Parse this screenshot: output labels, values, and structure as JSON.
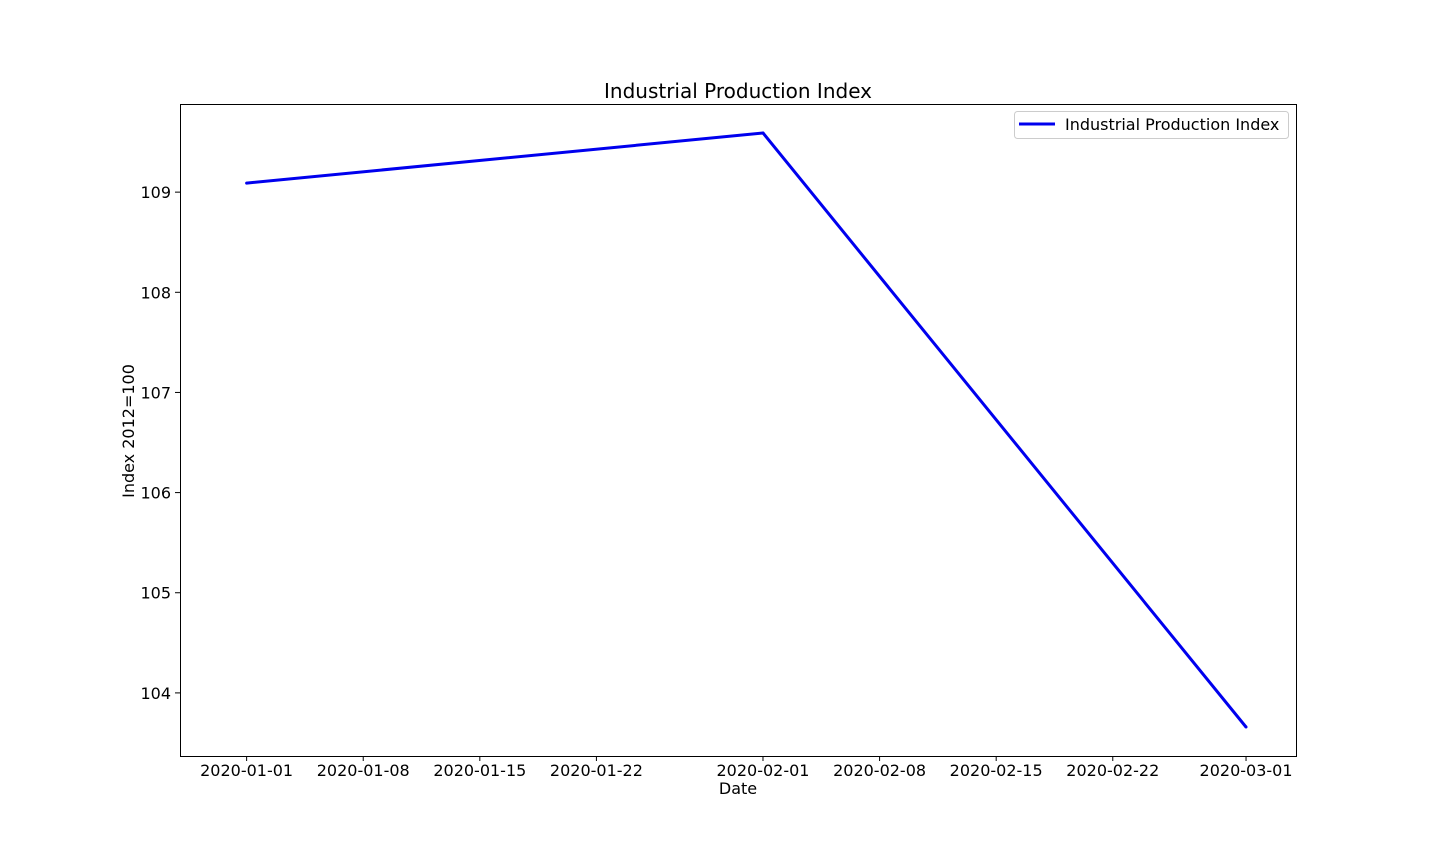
{
  "chart_data": {
    "type": "line",
    "title": "Industrial Production Index",
    "xlabel": "Date",
    "ylabel": "Index 2012=100",
    "x": [
      "2020-01-01",
      "2020-02-01",
      "2020-03-01"
    ],
    "series": [
      {
        "name": "Industrial Production Index",
        "values": [
          109.09,
          109.59,
          103.66
        ],
        "color": "#0000ee"
      }
    ],
    "x_ticks": [
      "2020-01-01",
      "2020-01-08",
      "2020-01-15",
      "2020-01-22",
      "2020-02-01",
      "2020-02-08",
      "2020-02-15",
      "2020-02-22",
      "2020-03-01"
    ],
    "y_ticks": [
      104,
      105,
      106,
      107,
      108,
      109
    ],
    "xlim": [
      "2019-12-28",
      "2020-03-04"
    ],
    "ylim": [
      103.37,
      109.88
    ],
    "grid": false,
    "legend_position": "top-right"
  }
}
